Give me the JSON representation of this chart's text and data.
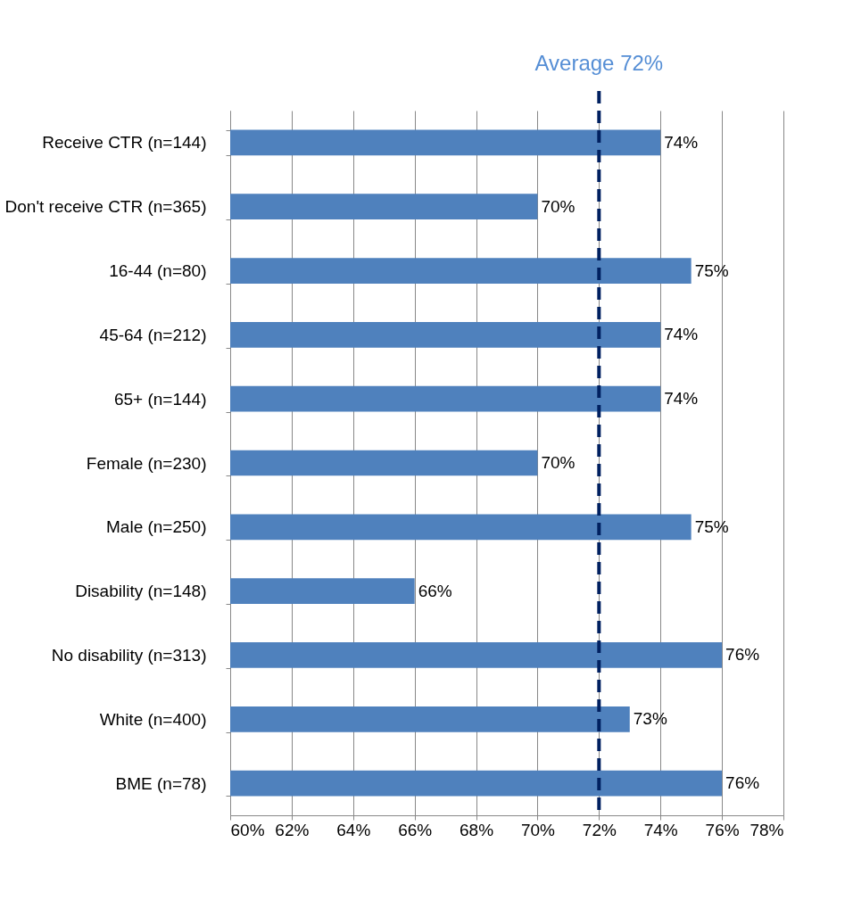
{
  "chart_data": {
    "type": "bar",
    "orientation": "horizontal",
    "categories": [
      "Receive CTR (n=144)",
      "Don't receive CTR (n=365)",
      "16-44 (n=80)",
      "45-64 (n=212)",
      "65+ (n=144)",
      "Female (n=230)",
      "Male (n=250)",
      "Disability (n=148)",
      "No disability (n=313)",
      "White (n=400)",
      "BME (n=78)"
    ],
    "values": [
      74,
      70,
      75,
      74,
      74,
      70,
      75,
      66,
      76,
      73,
      76
    ],
    "value_labels": [
      "74%",
      "70%",
      "75%",
      "74%",
      "74%",
      "70%",
      "75%",
      "66%",
      "76%",
      "73%",
      "76%"
    ],
    "color": "#4f81bd",
    "xlim": [
      60,
      78
    ],
    "xticks": [
      {
        "value": 60,
        "label": "60%"
      },
      {
        "value": 62,
        "label": "62%"
      },
      {
        "value": 64,
        "label": "64%"
      },
      {
        "value": 66,
        "label": "66%"
      },
      {
        "value": 68,
        "label": "68%"
      },
      {
        "value": 70,
        "label": "70%"
      },
      {
        "value": 72,
        "label": "72%"
      },
      {
        "value": 74,
        "label": "74%"
      },
      {
        "value": 76,
        "label": "76%"
      },
      {
        "value": 78,
        "label": "78%"
      }
    ],
    "grid": "x",
    "ref_lines": [
      {
        "axis": "x",
        "value": 72,
        "label": "Average 72%",
        "color": "#002060",
        "line_style": "dashed"
      }
    ]
  }
}
